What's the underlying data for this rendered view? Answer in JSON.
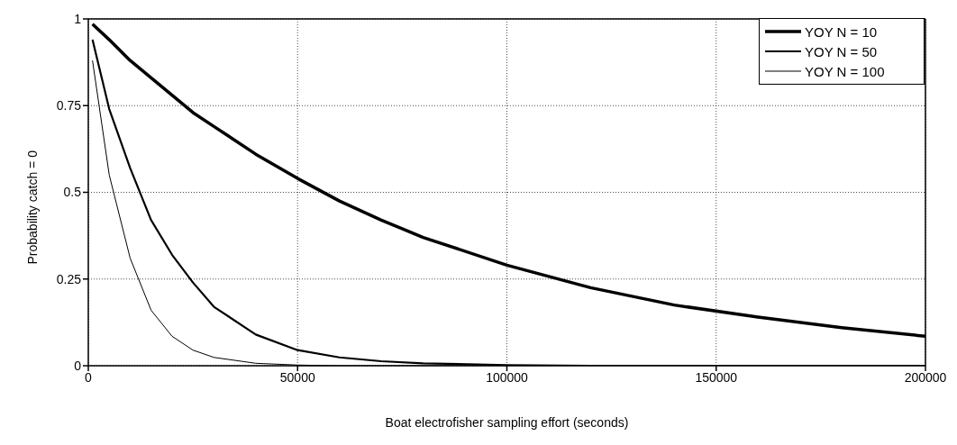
{
  "chart_data": {
    "type": "line",
    "xlabel": "Boat electrofisher sampling effort (seconds)",
    "ylabel": "Probability catch = 0",
    "x": [
      1000,
      5000,
      10000,
      15000,
      20000,
      25000,
      30000,
      40000,
      50000,
      60000,
      70000,
      80000,
      100000,
      120000,
      140000,
      160000,
      180000,
      200000
    ],
    "series": [
      {
        "name": "YOY N = 10",
        "color": "#000000",
        "values": [
          0.985,
          0.94,
          0.88,
          0.83,
          0.78,
          0.73,
          0.69,
          0.61,
          0.54,
          0.475,
          0.42,
          0.37,
          0.29,
          0.225,
          0.175,
          0.14,
          0.11,
          0.085
        ]
      },
      {
        "name": "YOY N = 50",
        "color": "#000000",
        "values": [
          0.94,
          0.74,
          0.57,
          0.42,
          0.32,
          0.24,
          0.17,
          0.09,
          0.045,
          0.024,
          0.013,
          0.007,
          0.002,
          0,
          0,
          0,
          0,
          0
        ]
      },
      {
        "name": "YOY N = 100",
        "color": "#000000",
        "values": [
          0.88,
          0.55,
          0.31,
          0.16,
          0.085,
          0.045,
          0.024,
          0.007,
          0.002,
          0,
          0,
          0,
          0,
          0,
          0,
          0,
          0,
          0
        ]
      }
    ],
    "xlim": [
      0,
      200000
    ],
    "xticks": [
      0,
      50000,
      100000,
      150000,
      200000
    ],
    "ylim": [
      0,
      1
    ],
    "yticks": [
      0,
      0.25,
      0.5,
      0.75,
      1
    ],
    "grid": true,
    "legend": "top right",
    "marker": "none",
    "line_style": "solid"
  }
}
